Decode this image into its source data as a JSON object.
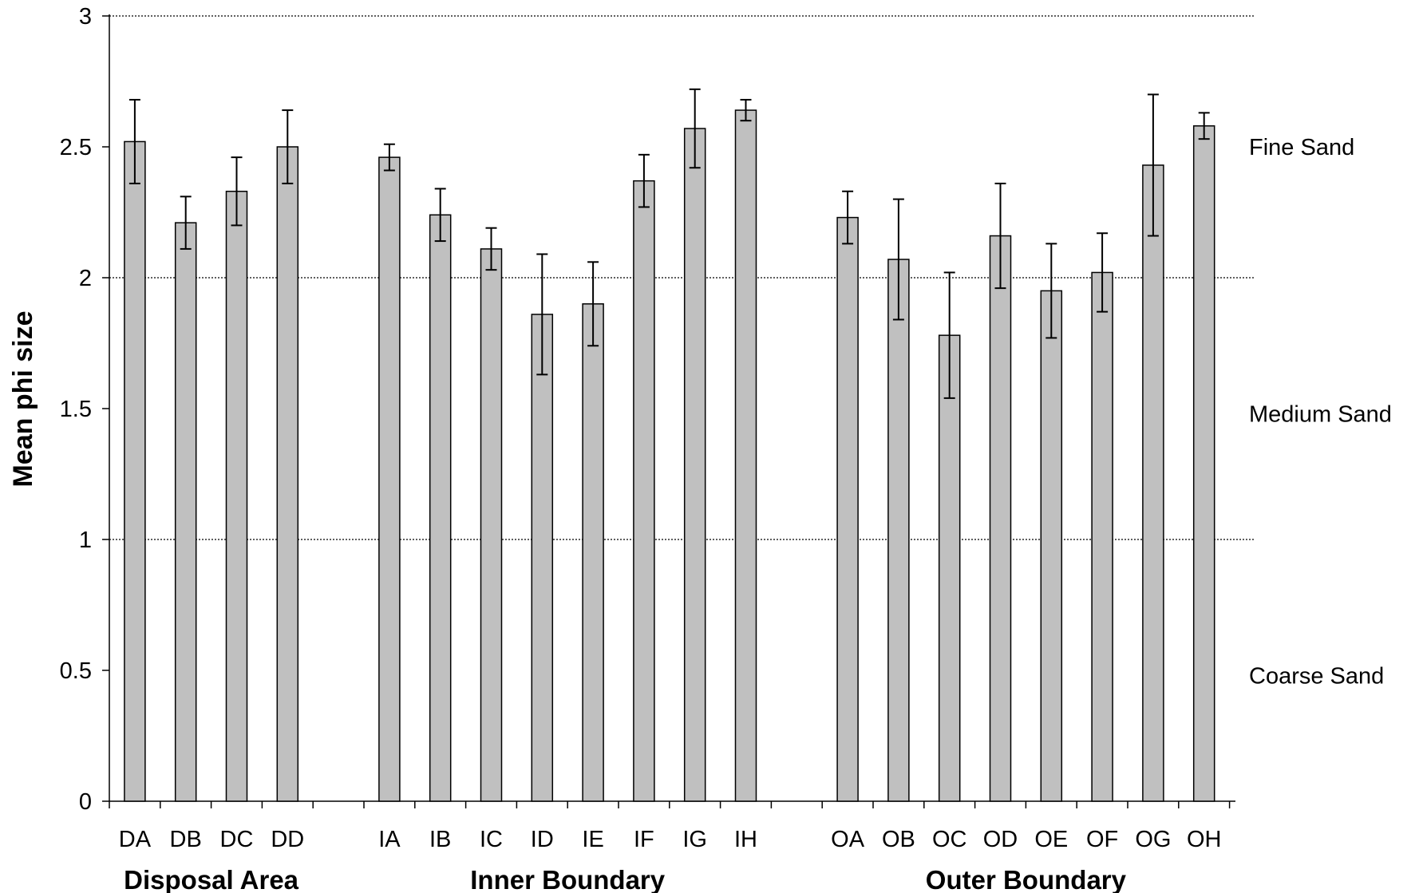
{
  "chart_data": {
    "type": "bar",
    "xlabel": "",
    "ylabel": "Mean phi size",
    "ylim": [
      0,
      3
    ],
    "yticks": [
      "0",
      "0.5",
      "1",
      "1.5",
      "2",
      "2.5",
      "3"
    ],
    "grid": "dotted horizontal lines at 1, 2 and 3",
    "bar_color": "#c0c0c0",
    "categories": [
      "DA",
      "DB",
      "DC",
      "DD",
      "IA",
      "IB",
      "IC",
      "ID",
      "IE",
      "IF",
      "IG",
      "IH",
      "OA",
      "OB",
      "OC",
      "OD",
      "OE",
      "OF",
      "OG",
      "OH"
    ],
    "values": [
      2.52,
      2.21,
      2.33,
      2.5,
      2.46,
      2.24,
      2.11,
      1.86,
      1.9,
      2.37,
      2.57,
      2.64,
      2.23,
      2.07,
      1.78,
      2.16,
      1.95,
      2.02,
      2.43,
      2.58
    ],
    "error": [
      0.16,
      0.1,
      0.13,
      0.14,
      0.05,
      0.1,
      0.08,
      0.23,
      0.16,
      0.1,
      0.15,
      0.04,
      0.1,
      0.23,
      0.24,
      0.2,
      0.18,
      0.15,
      0.27,
      0.05
    ],
    "groups": [
      {
        "label": "Disposal Area",
        "categories": [
          "DA",
          "DB",
          "DC",
          "DD"
        ]
      },
      {
        "label": "Inner Boundary",
        "categories": [
          "IA",
          "IB",
          "IC",
          "ID",
          "IE",
          "IF",
          "IG",
          "IH"
        ]
      },
      {
        "label": "Outer Boundary",
        "categories": [
          "OA",
          "OB",
          "OC",
          "OD",
          "OE",
          "OF",
          "OG",
          "OH"
        ]
      }
    ],
    "annotations": [
      {
        "text": "Fine Sand",
        "y": 2.5
      },
      {
        "text": "Medium Sand",
        "y": 1.48
      },
      {
        "text": "Coarse Sand",
        "y": 0.48
      }
    ]
  }
}
